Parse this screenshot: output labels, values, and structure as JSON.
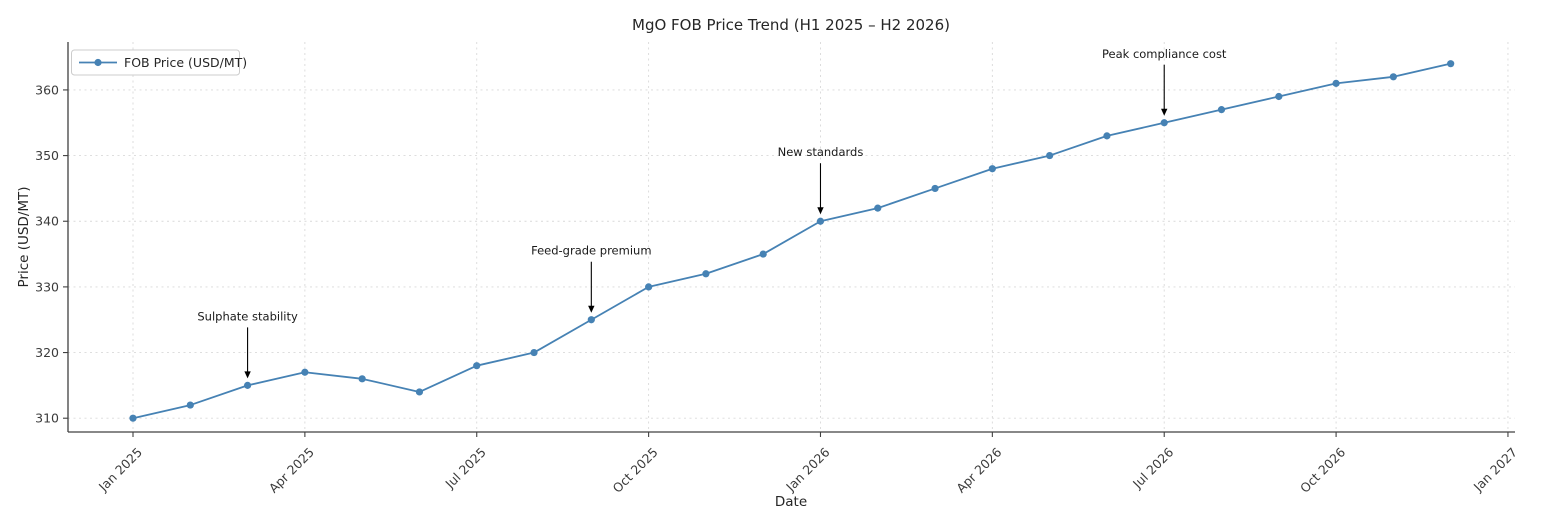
{
  "chart_data": {
    "type": "line",
    "title": "MgO FOB Price Trend (H1 2025 – H2 2026)",
    "xlabel": "Date",
    "ylabel": "Price (USD/MT)",
    "legend": {
      "label": "FOB Price (USD/MT)",
      "position": "upper left"
    },
    "series": [
      {
        "name": "FOB Price (USD/MT)",
        "x": [
          "Jan 2025",
          "Feb 2025",
          "Mar 2025",
          "Apr 2025",
          "May 2025",
          "Jun 2025",
          "Jul 2025",
          "Aug 2025",
          "Sep 2025",
          "Oct 2025",
          "Nov 2025",
          "Dec 2025",
          "Jan 2026",
          "Feb 2026",
          "Mar 2026",
          "Apr 2026",
          "May 2026",
          "Jun 2026",
          "Jul 2026",
          "Aug 2026",
          "Sep 2026",
          "Oct 2026",
          "Nov 2026",
          "Dec 2026"
        ],
        "values": [
          310,
          312,
          315,
          317,
          316,
          314,
          318,
          320,
          325,
          330,
          332,
          335,
          340,
          342,
          345,
          348,
          350,
          353,
          355,
          357,
          359,
          361,
          362,
          364
        ]
      }
    ],
    "x_ticks": {
      "labels": [
        "Jan 2025",
        "Apr 2025",
        "Jul 2025",
        "Oct 2025",
        "Jan 2026",
        "Apr 2026",
        "Jul 2026",
        "Oct 2026",
        "Jan 2027"
      ],
      "month_indices": [
        0,
        3,
        6,
        9,
        12,
        15,
        18,
        21,
        24
      ]
    },
    "y_ticks": [
      310,
      320,
      330,
      340,
      350,
      360
    ],
    "ylim": [
      307.9,
      367.3
    ],
    "grid": true,
    "annotations": [
      {
        "label": "Sulphate stability",
        "month_index": 2,
        "value": 315
      },
      {
        "label": "Feed-grade premium",
        "month_index": 8,
        "value": 325
      },
      {
        "label": "New standards",
        "month_index": 12,
        "value": 340
      },
      {
        "label": "Peak compliance cost",
        "month_index": 18,
        "value": 355
      }
    ],
    "colors": {
      "line": "#4682b4",
      "marker": "#4682b4",
      "grid": "#d9d9d9",
      "spine": "#404040",
      "annotation_arrow": "#000000",
      "background": "#ffffff"
    }
  }
}
